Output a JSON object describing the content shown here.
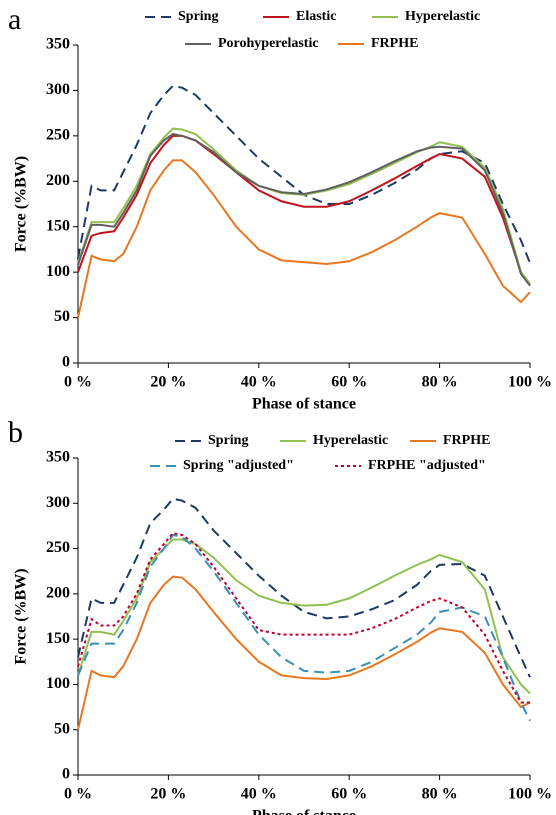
{
  "chart_data": [
    {
      "type": "line",
      "panel_label": "a",
      "x_label": "Phase of stance",
      "y_label": "Force (%BW)",
      "x": [
        0,
        3,
        5,
        8,
        10,
        13,
        16,
        19,
        21,
        23,
        26,
        30,
        35,
        40,
        45,
        50,
        55,
        60,
        65,
        70,
        75,
        78,
        80,
        85,
        90,
        94,
        98,
        100
      ],
      "xlim": [
        0,
        100
      ],
      "xticks": [
        {
          "value": 0,
          "label": "0 %"
        },
        {
          "value": 20,
          "label": "20 %"
        },
        {
          "value": 40,
          "label": "40 %"
        },
        {
          "value": 60,
          "label": "60 %"
        },
        {
          "value": 80,
          "label": "80 %"
        },
        {
          "value": 100,
          "label": "100 %"
        }
      ],
      "ylim": [
        0,
        350
      ],
      "yticks": [
        0,
        50,
        100,
        150,
        200,
        250,
        300,
        350
      ],
      "series": [
        {
          "name": "Spring",
          "color": "#1f3864",
          "dash": "dashed",
          "values": [
            115,
            195,
            190,
            190,
            210,
            240,
            275,
            295,
            305,
            303,
            295,
            275,
            250,
            225,
            205,
            185,
            175,
            175,
            185,
            198,
            213,
            225,
            230,
            233,
            220,
            175,
            135,
            110
          ]
        },
        {
          "name": "Elastic",
          "color": "#c0141c",
          "dash": "solid",
          "values": [
            100,
            140,
            143,
            145,
            160,
            185,
            220,
            240,
            250,
            250,
            245,
            230,
            210,
            190,
            178,
            172,
            172,
            178,
            190,
            203,
            217,
            225,
            230,
            225,
            205,
            160,
            100,
            87
          ]
        },
        {
          "name": "Hyperelastic",
          "color": "#92c050",
          "dash": "solid",
          "values": [
            110,
            155,
            155,
            155,
            170,
            195,
            230,
            248,
            258,
            257,
            252,
            235,
            212,
            195,
            187,
            185,
            190,
            197,
            208,
            220,
            232,
            238,
            243,
            238,
            215,
            170,
            100,
            87
          ]
        },
        {
          "name": "Porohyperelastic",
          "color": "#606060",
          "dash": "solid",
          "values": [
            108,
            152,
            152,
            150,
            165,
            190,
            228,
            245,
            252,
            250,
            245,
            232,
            210,
            195,
            188,
            186,
            191,
            199,
            210,
            222,
            233,
            237,
            238,
            236,
            212,
            165,
            98,
            85
          ]
        },
        {
          "name": "FRPHE",
          "color": "#e87722",
          "dash": "solid",
          "values": [
            50,
            118,
            114,
            112,
            120,
            150,
            190,
            212,
            223,
            223,
            210,
            185,
            150,
            125,
            113,
            111,
            109,
            112,
            122,
            135,
            150,
            160,
            165,
            160,
            120,
            85,
            67,
            78
          ]
        }
      ]
    },
    {
      "type": "line",
      "panel_label": "b",
      "x_label": "Phase of stance",
      "y_label": "Force (%BW)",
      "x": [
        0,
        3,
        5,
        8,
        10,
        13,
        16,
        19,
        21,
        23,
        26,
        30,
        35,
        40,
        45,
        50,
        55,
        60,
        65,
        70,
        75,
        78,
        80,
        85,
        90,
        94,
        98,
        100
      ],
      "xlim": [
        0,
        100
      ],
      "xticks": [
        {
          "value": 0,
          "label": "0 %"
        },
        {
          "value": 20,
          "label": "20 %"
        },
        {
          "value": 40,
          "label": "40 %"
        },
        {
          "value": 60,
          "label": "60 %"
        },
        {
          "value": 80,
          "label": "80 %"
        },
        {
          "value": 100,
          "label": "100 %"
        }
      ],
      "ylim": [
        0,
        350
      ],
      "yticks": [
        0,
        50,
        100,
        150,
        200,
        250,
        300,
        350
      ],
      "series": [
        {
          "name": "Spring",
          "color": "#1f3864",
          "dash": "dashed",
          "values": [
            130,
            195,
            190,
            190,
            210,
            240,
            278,
            293,
            305,
            303,
            295,
            270,
            245,
            220,
            198,
            180,
            173,
            175,
            183,
            193,
            210,
            225,
            232,
            233,
            220,
            175,
            130,
            108
          ]
        },
        {
          "name": "Hyperelastic",
          "color": "#92c050",
          "dash": "solid",
          "values": [
            110,
            158,
            158,
            155,
            170,
            195,
            235,
            250,
            260,
            260,
            255,
            240,
            215,
            198,
            190,
            187,
            188,
            195,
            207,
            220,
            232,
            238,
            243,
            235,
            205,
            130,
            100,
            90
          ]
        },
        {
          "name": "FRPHE",
          "color": "#e87722",
          "dash": "solid",
          "values": [
            50,
            115,
            110,
            108,
            120,
            150,
            190,
            210,
            219,
            218,
            205,
            180,
            150,
            125,
            110,
            107,
            106,
            110,
            120,
            133,
            147,
            157,
            162,
            158,
            135,
            100,
            75,
            80
          ]
        },
        {
          "name": "Spring \"adjusted\"",
          "color": "#3a8fb7",
          "dash": "dashed",
          "values": [
            110,
            145,
            145,
            145,
            160,
            190,
            230,
            250,
            265,
            263,
            250,
            225,
            190,
            155,
            130,
            115,
            113,
            115,
            125,
            140,
            155,
            168,
            180,
            185,
            175,
            130,
            80,
            60
          ]
        },
        {
          "name": "FRPHE \"adjusted\"",
          "color": "#c0002a",
          "dash": "dotted",
          "values": [
            120,
            172,
            165,
            165,
            175,
            200,
            238,
            255,
            267,
            265,
            255,
            230,
            195,
            160,
            155,
            155,
            155,
            155,
            162,
            172,
            185,
            192,
            195,
            185,
            155,
            115,
            80,
            80
          ]
        }
      ]
    }
  ]
}
